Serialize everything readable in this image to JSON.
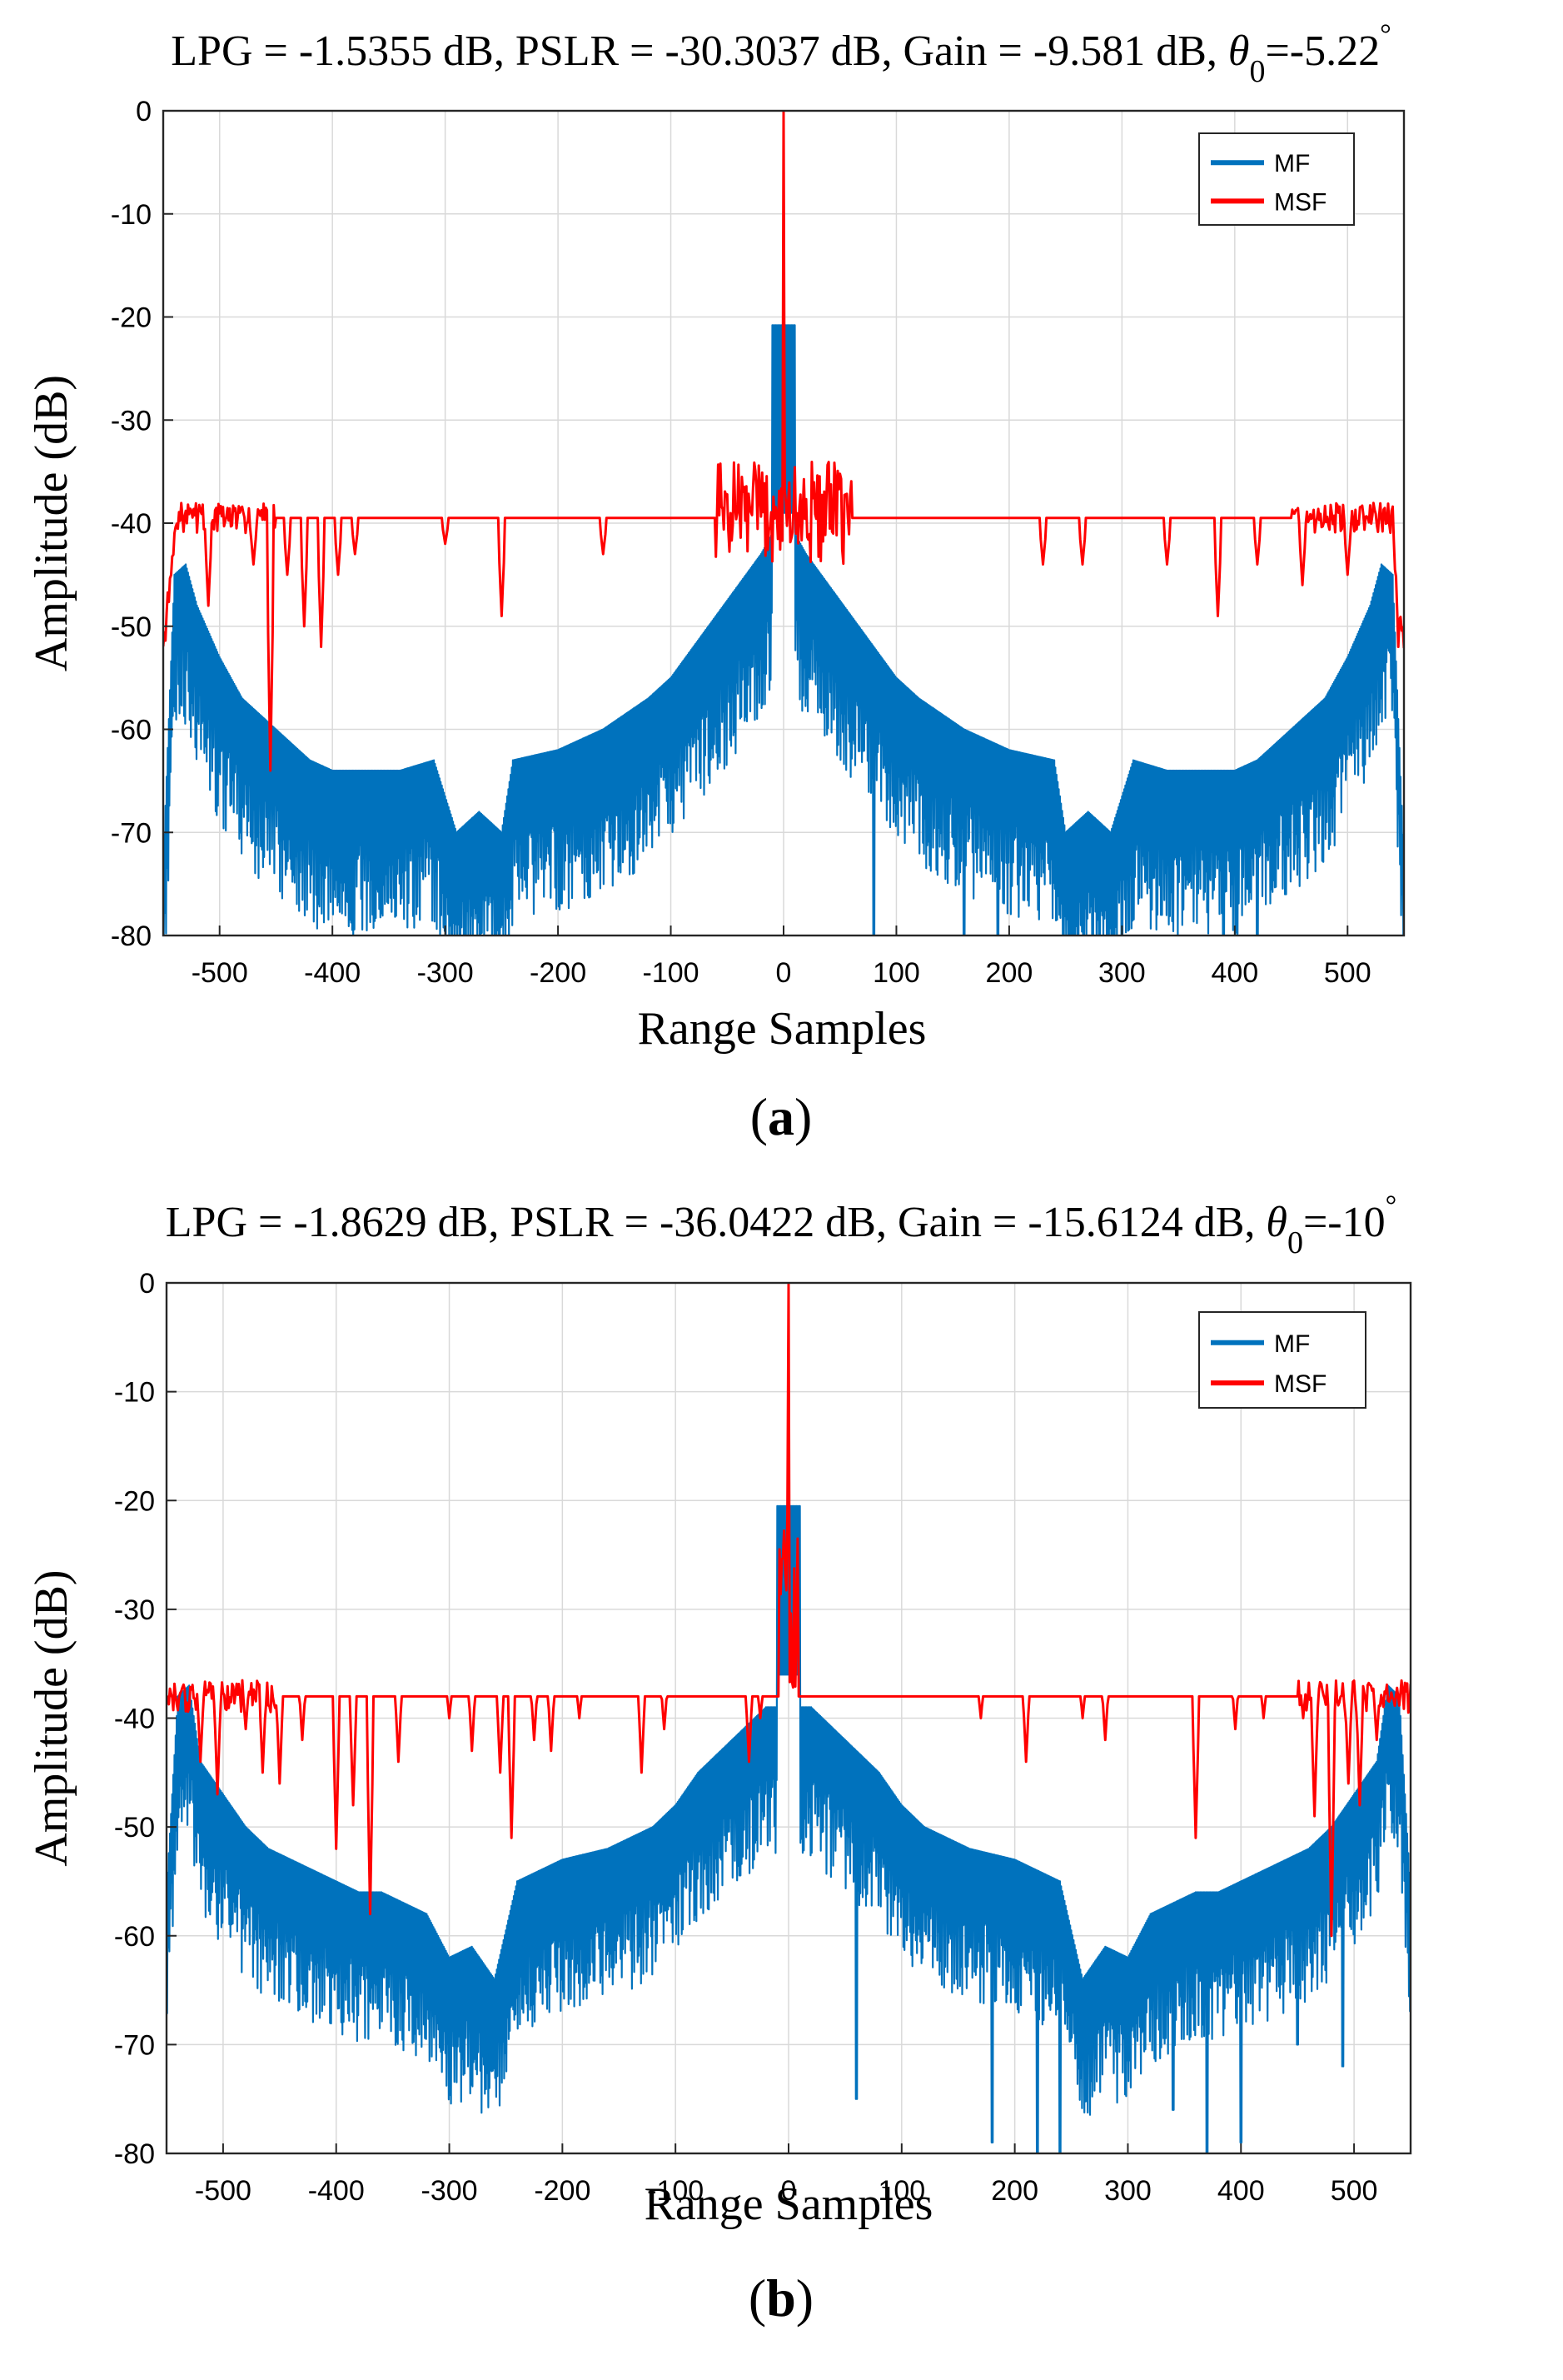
{
  "figure": {
    "panels": [
      {
        "id": "a",
        "caption_letter": "a",
        "title": {
          "main": "LPG = -1.5355 dB, PSLR = -30.3037 dB, Gain = -9.581 dB, ",
          "theta": "θ",
          "theta_sub": "0",
          "value": "=-5.22",
          "degree": "°"
        }
      },
      {
        "id": "b",
        "caption_letter": "b",
        "title": {
          "main": "LPG = -1.8629 dB, PSLR = -36.0422 dB, Gain = -15.6124 dB, ",
          "theta": "θ",
          "theta_sub": "0",
          "value": "=-10",
          "degree": "°"
        }
      }
    ]
  },
  "colors": {
    "mf": "#0072BD",
    "msf": "#FF0000",
    "grid": "#d9d9d9",
    "axis": "#262626"
  },
  "chart_data": [
    {
      "type": "line",
      "panel": "a",
      "title": "LPG = -1.5355 dB, PSLR = -30.3037 dB, Gain = -9.581 dB, θ0=-5.22°",
      "xlabel": "Range Samples",
      "ylabel": "Amplitude (dB)",
      "xlim": [
        -550,
        550
      ],
      "ylim": [
        -80,
        0
      ],
      "xticks": [
        -500,
        -400,
        -300,
        -200,
        -100,
        0,
        100,
        200,
        300,
        400,
        500
      ],
      "yticks": [
        0,
        -10,
        -20,
        -30,
        -40,
        -50,
        -60,
        -70,
        -80
      ],
      "xtick_labels": [
        "-500",
        "-400",
        "-300",
        "-200",
        "-100",
        "0",
        "100",
        "200",
        "300",
        "400",
        "500"
      ],
      "ytick_labels": [
        "0",
        "-10",
        "-20",
        "-30",
        "-40",
        "-50",
        "-60",
        "-70",
        "-80"
      ],
      "grid": true,
      "legend": {
        "position": "top-right",
        "entries": [
          "MF",
          "MSF"
        ]
      },
      "series": [
        {
          "name": "MF",
          "color": "#0072BD",
          "peak": {
            "x_range": [
              -10,
              10
            ],
            "value": -20.8
          },
          "mainlobe_floor": -39,
          "envelope": [
            [
              -550,
              -73
            ],
            [
              -540,
              -45
            ],
            [
              -530,
              -44
            ],
            [
              -520,
              -48
            ],
            [
              -500,
              -53
            ],
            [
              -480,
              -57
            ],
            [
              -460,
              -59
            ],
            [
              -440,
              -61
            ],
            [
              -420,
              -63
            ],
            [
              -400,
              -64
            ],
            [
              -380,
              -64
            ],
            [
              -360,
              -64
            ],
            [
              -340,
              -64
            ],
            [
              -310,
              -63
            ],
            [
              -290,
              -70
            ],
            [
              -270,
              -68
            ],
            [
              -250,
              -70
            ],
            [
              -240,
              -63
            ],
            [
              -200,
              -62
            ],
            [
              -160,
              -60
            ],
            [
              -120,
              -57
            ],
            [
              -100,
              -55
            ],
            [
              -80,
              -52
            ],
            [
              -60,
              -49
            ],
            [
              -40,
              -46
            ],
            [
              -20,
              -43
            ],
            [
              -10,
              -41
            ],
            [
              10,
              -41
            ],
            [
              20,
              -43
            ],
            [
              40,
              -46
            ],
            [
              60,
              -49
            ],
            [
              80,
              -52
            ],
            [
              100,
              -55
            ],
            [
              120,
              -57
            ],
            [
              160,
              -60
            ],
            [
              200,
              -62
            ],
            [
              240,
              -63
            ],
            [
              250,
              -70
            ],
            [
              270,
              -68
            ],
            [
              290,
              -70
            ],
            [
              310,
              -63
            ],
            [
              340,
              -64
            ],
            [
              360,
              -64
            ],
            [
              380,
              -64
            ],
            [
              400,
              -64
            ],
            [
              420,
              -63
            ],
            [
              440,
              -61
            ],
            [
              460,
              -59
            ],
            [
              480,
              -57
            ],
            [
              500,
              -53
            ],
            [
              520,
              -48
            ],
            [
              530,
              -44
            ],
            [
              540,
              -45
            ],
            [
              550,
              -73
            ]
          ],
          "depth_db": 16,
          "dips": [
            [
              -530,
              -57
            ],
            [
              -445,
              -76
            ],
            [
              -420,
              -80
            ],
            [
              -390,
              -80
            ],
            [
              -335,
              -78
            ],
            [
              -300,
              -80
            ],
            [
              -225,
              -75
            ],
            [
              -190,
              -80
            ],
            [
              -160,
              -80
            ],
            [
              -80,
              -80
            ],
            [
              80,
              -80
            ],
            [
              160,
              -80
            ],
            [
              190,
              -80
            ],
            [
              225,
              -75
            ],
            [
              300,
              -80
            ],
            [
              335,
              -78
            ],
            [
              390,
              -80
            ],
            [
              420,
              -80
            ],
            [
              445,
              -76
            ],
            [
              530,
              -57
            ]
          ]
        },
        {
          "name": "MSF",
          "color": "#FF0000",
          "peak": {
            "x": 0,
            "value": 0
          },
          "baseline": -39.5,
          "edge": [
            [
              -550,
              -52
            ],
            [
              -540,
              -42
            ],
            [
              540,
              -42
            ],
            [
              550,
              -52
            ]
          ],
          "near_peak_noise": {
            "x_range": [
              -60,
              60
            ],
            "min": -44,
            "max": -34
          },
          "dips": [
            [
              -510,
              -48
            ],
            [
              -470,
              -44
            ],
            [
              -455,
              -64
            ],
            [
              -440,
              -45
            ],
            [
              -425,
              -50
            ],
            [
              -410,
              -52
            ],
            [
              -395,
              -45
            ],
            [
              -380,
              -43
            ],
            [
              -300,
              -42
            ],
            [
              -250,
              -49
            ],
            [
              -160,
              -43
            ],
            [
              230,
              -44
            ],
            [
              265,
              -44
            ],
            [
              340,
              -44
            ],
            [
              385,
              -49
            ],
            [
              420,
              -44
            ],
            [
              460,
              -46
            ],
            [
              500,
              -45
            ],
            [
              545,
              -52
            ]
          ]
        }
      ]
    },
    {
      "type": "line",
      "panel": "b",
      "title": "LPG = -1.8629 dB, PSLR = -36.0422 dB, Gain = -15.6124 dB, θ0=-10°",
      "xlabel": "Range Samples",
      "ylabel": "Amplitude (dB)",
      "xlim": [
        -550,
        550
      ],
      "ylim": [
        -80,
        0
      ],
      "xticks": [
        -500,
        -400,
        -300,
        -200,
        -100,
        0,
        100,
        200,
        300,
        400,
        500
      ],
      "yticks": [
        0,
        -10,
        -20,
        -30,
        -40,
        -50,
        -60,
        -70,
        -80
      ],
      "xtick_labels": [
        "-500",
        "-400",
        "-300",
        "-200",
        "-100",
        "0",
        "100",
        "200",
        "300",
        "400",
        "500"
      ],
      "ytick_labels": [
        "0",
        "-10",
        "-20",
        "-30",
        "-40",
        "-50",
        "-60",
        "-70",
        "-80"
      ],
      "grid": true,
      "legend": {
        "position": "top-right",
        "entries": [
          "MF",
          "MSF"
        ]
      },
      "series": [
        {
          "name": "MF",
          "color": "#0072BD",
          "peak": {
            "x_range": [
              -10,
              10
            ],
            "value": -20.5
          },
          "mainlobe_floor": -36,
          "envelope": [
            [
              -550,
              -56
            ],
            [
              -540,
              -38
            ],
            [
              -530,
              -37
            ],
            [
              -520,
              -44
            ],
            [
              -500,
              -47
            ],
            [
              -480,
              -50
            ],
            [
              -460,
              -52
            ],
            [
              -440,
              -53
            ],
            [
              -420,
              -54
            ],
            [
              -400,
              -55
            ],
            [
              -380,
              -56
            ],
            [
              -360,
              -56
            ],
            [
              -340,
              -57
            ],
            [
              -320,
              -58
            ],
            [
              -300,
              -62
            ],
            [
              -280,
              -61
            ],
            [
              -260,
              -64
            ],
            [
              -240,
              -55
            ],
            [
              -220,
              -54
            ],
            [
              -200,
              -53
            ],
            [
              -160,
              -52
            ],
            [
              -120,
              -50
            ],
            [
              -100,
              -48
            ],
            [
              -80,
              -45
            ],
            [
              -60,
              -43
            ],
            [
              -40,
              -41
            ],
            [
              -20,
              -39
            ],
            [
              20,
              -39
            ],
            [
              40,
              -41
            ],
            [
              60,
              -43
            ],
            [
              80,
              -45
            ],
            [
              100,
              -48
            ],
            [
              120,
              -50
            ],
            [
              160,
              -52
            ],
            [
              200,
              -53
            ],
            [
              220,
              -54
            ],
            [
              240,
              -55
            ],
            [
              260,
              -64
            ],
            [
              280,
              -61
            ],
            [
              300,
              -62
            ],
            [
              320,
              -58
            ],
            [
              340,
              -57
            ],
            [
              360,
              -56
            ],
            [
              380,
              -56
            ],
            [
              400,
              -55
            ],
            [
              420,
              -54
            ],
            [
              440,
              -53
            ],
            [
              460,
              -52
            ],
            [
              480,
              -50
            ],
            [
              500,
              -47
            ],
            [
              520,
              -44
            ],
            [
              530,
              -37
            ],
            [
              540,
              -38
            ],
            [
              550,
              -56
            ]
          ],
          "depth_db": 14,
          "dips": [
            [
              -490,
              -72
            ],
            [
              -450,
              -70
            ],
            [
              -400,
              -79
            ],
            [
              -370,
              -80
            ],
            [
              -340,
              -76
            ],
            [
              -240,
              -80
            ],
            [
              -220,
              -80
            ],
            [
              -180,
              -79
            ],
            [
              -60,
              -75
            ],
            [
              60,
              -75
            ],
            [
              180,
              -79
            ],
            [
              220,
              -80
            ],
            [
              240,
              -80
            ],
            [
              340,
              -76
            ],
            [
              370,
              -80
            ],
            [
              400,
              -79
            ],
            [
              450,
              -70
            ],
            [
              490,
              -72
            ]
          ]
        },
        {
          "name": "MSF",
          "color": "#FF0000",
          "peak": {
            "x": 0,
            "value": 0
          },
          "baseline": -36,
          "edge": [
            [
              -550,
              -38
            ],
            [
              550,
              -38
            ]
          ],
          "near_peak_noise": {
            "x_range": [
              -8,
              8
            ],
            "min": -38,
            "max": -20
          },
          "dips": [
            [
              -520,
              -44
            ],
            [
              -505,
              -47
            ],
            [
              -480,
              -41
            ],
            [
              -465,
              -45
            ],
            [
              -450,
              -46
            ],
            [
              -430,
              -42
            ],
            [
              -400,
              -52
            ],
            [
              -385,
              -48
            ],
            [
              -370,
              -58
            ],
            [
              -345,
              -44
            ],
            [
              -300,
              -40
            ],
            [
              -280,
              -43
            ],
            [
              -255,
              -45
            ],
            [
              -245,
              -51
            ],
            [
              -225,
              -42
            ],
            [
              -210,
              -43
            ],
            [
              -185,
              -40
            ],
            [
              -130,
              -45
            ],
            [
              -110,
              -41
            ],
            [
              -35,
              -44
            ],
            [
              -25,
              -40
            ],
            [
              170,
              -40
            ],
            [
              210,
              -44
            ],
            [
              260,
              -40
            ],
            [
              280,
              -42
            ],
            [
              360,
              -51
            ],
            [
              395,
              -41
            ],
            [
              420,
              -40
            ],
            [
              455,
              -40
            ],
            [
              465,
              -49
            ],
            [
              480,
              -60
            ],
            [
              495,
              -46
            ],
            [
              505,
              -48
            ],
            [
              520,
              -42
            ]
          ]
        }
      ]
    }
  ]
}
